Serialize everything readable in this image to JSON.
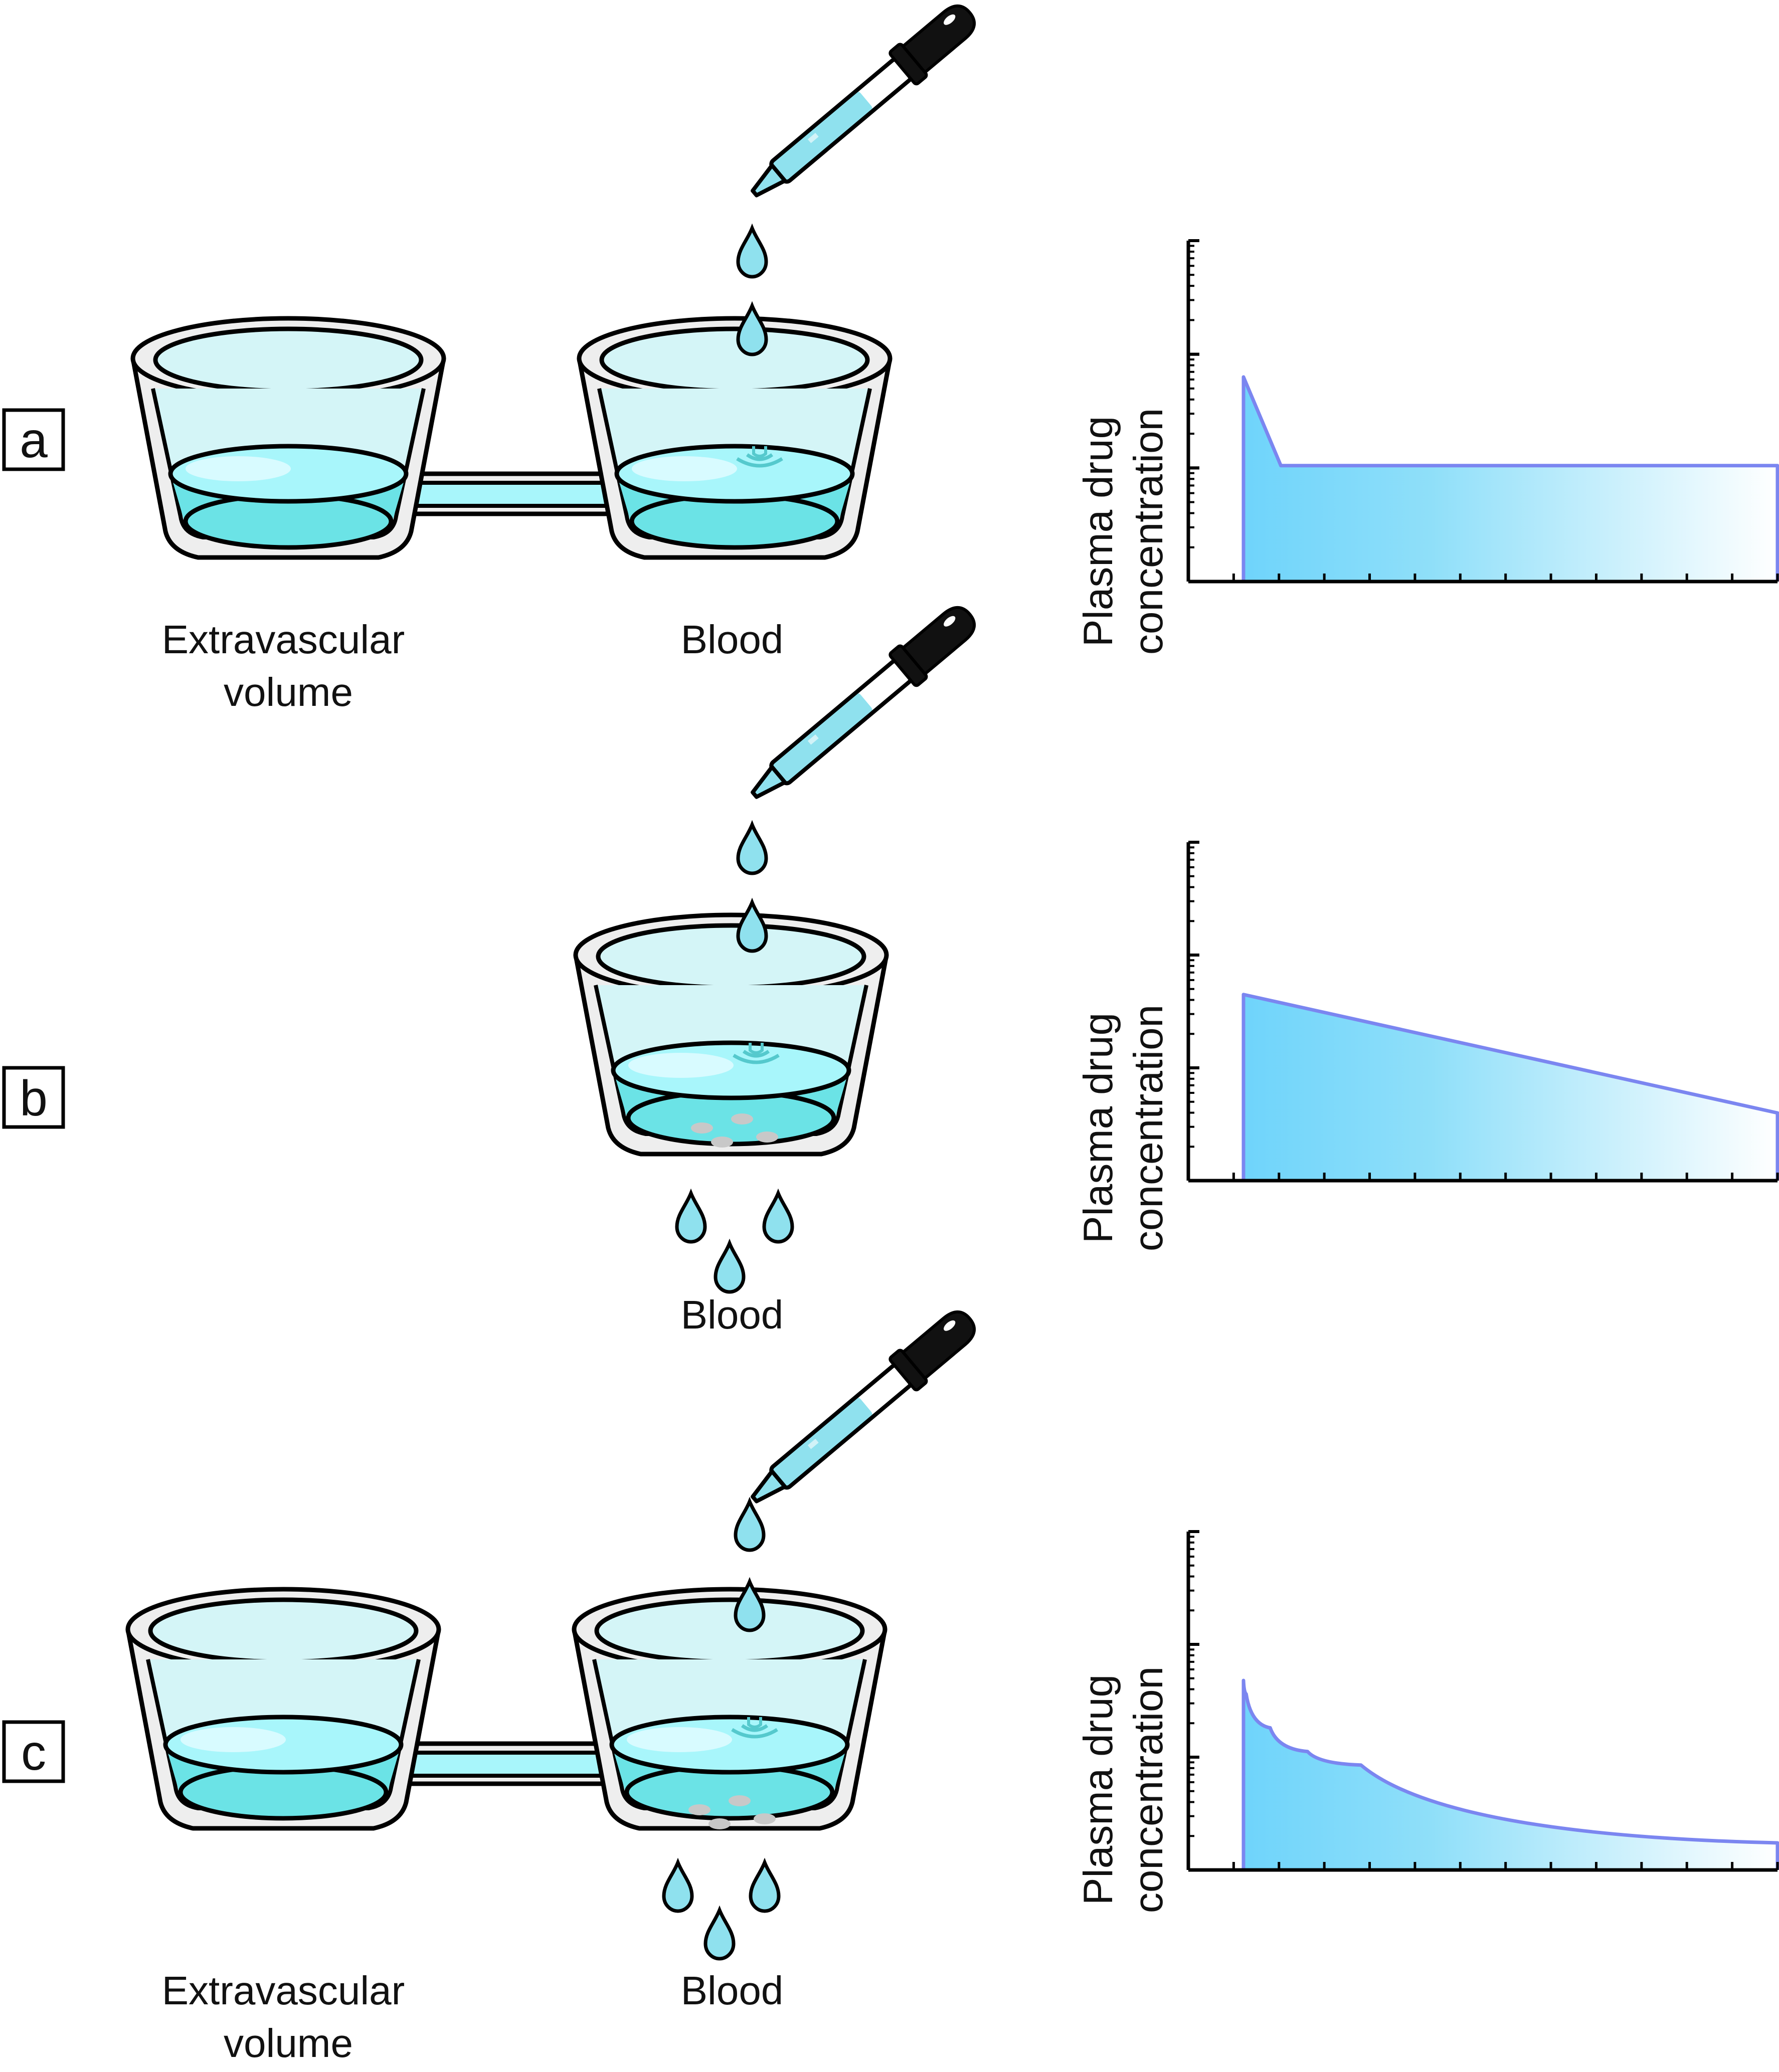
{
  "panels": [
    {
      "letter": "a",
      "left_label": [
        "Extravascular",
        "volume"
      ],
      "right_label": "Blood",
      "y_label": [
        "Plasma drug",
        "concentration"
      ],
      "chart_data": {
        "type": "area",
        "description_shape": "rapid distribution drop then plateau",
        "y_scale": "log",
        "x": [
          0,
          0.07,
          1
        ],
        "y": [
          0.6,
          0.34,
          0.34
        ],
        "xlabel": "",
        "ylabel": "Plasma drug concentration"
      }
    },
    {
      "letter": "b",
      "bottom_label": "Blood",
      "y_label": [
        "Plasma drug",
        "concentration"
      ],
      "chart_data": {
        "type": "area",
        "y_scale": "log",
        "x": [
          0,
          1
        ],
        "y": [
          0.55,
          0.2
        ],
        "xlabel": "",
        "ylabel": "Plasma drug concentration"
      }
    },
    {
      "letter": "c",
      "left_label": [
        "Extravascular",
        "volume"
      ],
      "right_label": "Blood",
      "y_label": [
        "Plasma drug",
        "concentration"
      ],
      "chart_data": {
        "type": "area",
        "y_scale": "log",
        "x": [
          0,
          0.005,
          0.05,
          0.12,
          0.22,
          1
        ],
        "y": [
          0.56,
          0.52,
          0.42,
          0.35,
          0.31,
          0.08
        ],
        "xlabel": "",
        "ylabel": "Plasma drug concentration"
      }
    }
  ],
  "colors": {
    "water": "#6be3e6",
    "water_surface": "#a8f6fb",
    "glass": "#eeeeee",
    "cup_inner": "#d6f6f8",
    "dropper_bulb": "#000000",
    "dropper_fluid": "#8fe1ee",
    "curve_line": "#7b86f0",
    "curve_fill_start": "#6fd4fb",
    "curve_fill_end": "#ffffff"
  }
}
